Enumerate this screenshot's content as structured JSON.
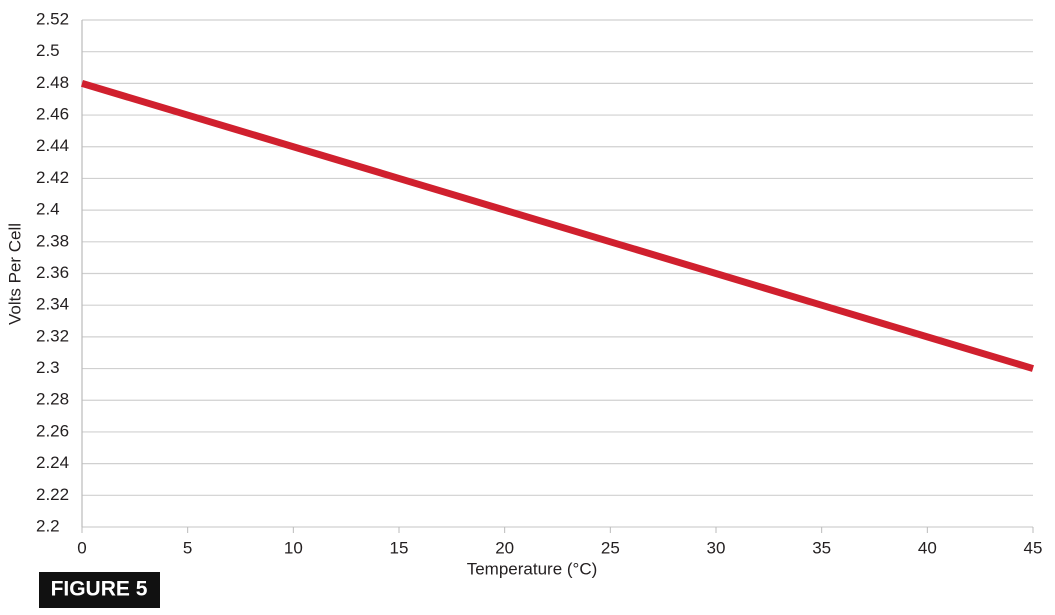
{
  "chart_data": {
    "type": "line",
    "x_label": "Temperature (°C)",
    "y_label": "Volts Per Cell",
    "figure_label": "FIGURE 5",
    "x": [
      0,
      5,
      10,
      15,
      20,
      25,
      30,
      35,
      40,
      45
    ],
    "values": [
      2.48,
      2.46,
      2.44,
      2.42,
      2.4,
      2.38,
      2.36,
      2.34,
      2.32,
      2.3
    ],
    "color": "#d0202e",
    "xlim": [
      0,
      45
    ],
    "xticks": [
      0,
      5,
      10,
      15,
      20,
      25,
      30,
      35,
      40,
      45
    ],
    "ylim": [
      2.2,
      2.52
    ],
    "yticks": [
      2.2,
      2.22,
      2.24,
      2.26,
      2.28,
      2.3,
      2.32,
      2.34,
      2.36,
      2.38,
      2.4,
      2.42,
      2.44,
      2.46,
      2.48,
      2.5,
      2.52
    ],
    "grid": true
  }
}
